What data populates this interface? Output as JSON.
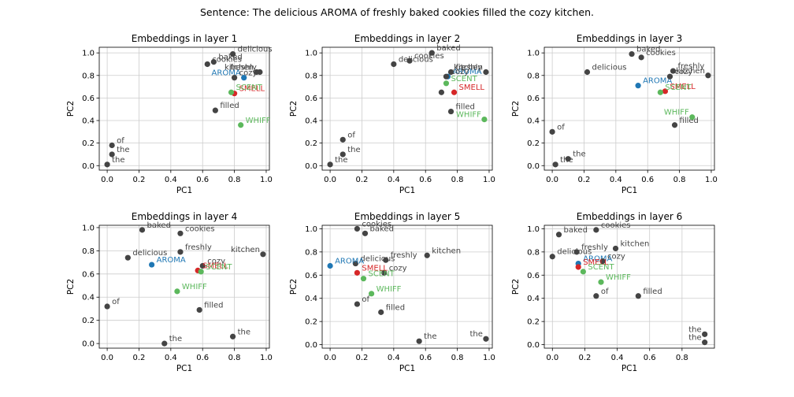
{
  "chart_data": {
    "type": "scatter",
    "suptitle": "Sentence: The delicious AROMA of freshly baked cookies filled the cozy kitchen.",
    "colors": {
      "word": "#444444",
      "AROMA": "#1f77b4",
      "SMELL": "#d62728",
      "SCENT": "#5cb85c",
      "WHIFF": "#5cb85c",
      "grid": "#cccccc"
    },
    "panels": [
      {
        "title": "Embeddings in layer 1",
        "xlabel": "PC1",
        "ylabel": "PC2",
        "xlim": [
          -0.05,
          1.02
        ],
        "ylim": [
          -0.04,
          1.05
        ],
        "xticks": [
          0.0,
          0.2,
          0.4,
          0.6,
          0.8,
          1.0
        ],
        "yticks": [
          0.0,
          0.2,
          0.4,
          0.6,
          0.8,
          1.0
        ],
        "grid": true,
        "points": [
          {
            "label": "the",
            "x": 0.0,
            "y": 0.01
          },
          {
            "label": "delicious",
            "x": 0.79,
            "y": 0.99
          },
          {
            "label": "AROMA",
            "x": 0.86,
            "y": 0.78
          },
          {
            "label": "of",
            "x": 0.03,
            "y": 0.18
          },
          {
            "label": "freshly",
            "x": 0.96,
            "y": 0.83
          },
          {
            "label": "baked",
            "x": 0.67,
            "y": 0.92
          },
          {
            "label": "cookies",
            "x": 0.63,
            "y": 0.9
          },
          {
            "label": "filled",
            "x": 0.68,
            "y": 0.49
          },
          {
            "label": "the",
            "x": 0.03,
            "y": 0.1
          },
          {
            "label": "cozy",
            "x": 0.8,
            "y": 0.78
          },
          {
            "label": "kitchen",
            "x": 0.94,
            "y": 0.83
          },
          {
            "label": "SMELL",
            "x": 0.8,
            "y": 0.64
          },
          {
            "label": "SCENT",
            "x": 0.78,
            "y": 0.65
          },
          {
            "label": "WHIFF",
            "x": 0.84,
            "y": 0.36
          }
        ]
      },
      {
        "title": "Embeddings in layer 2",
        "xlabel": "PC1",
        "ylabel": "PC2",
        "xlim": [
          -0.05,
          1.02
        ],
        "ylim": [
          -0.04,
          1.05
        ],
        "xticks": [
          0.0,
          0.2,
          0.4,
          0.6,
          0.8,
          1.0
        ],
        "yticks": [
          0.0,
          0.2,
          0.4,
          0.6,
          0.8,
          1.0
        ],
        "grid": true,
        "points": [
          {
            "label": "the",
            "x": 0.0,
            "y": 0.01
          },
          {
            "label": "delicious",
            "x": 0.4,
            "y": 0.9
          },
          {
            "label": "AROMA",
            "x": 0.74,
            "y": 0.79
          },
          {
            "label": "of",
            "x": 0.08,
            "y": 0.23
          },
          {
            "label": "freshly",
            "x": 0.76,
            "y": 0.83
          },
          {
            "label": "baked",
            "x": 0.64,
            "y": 1.0
          },
          {
            "label": "cookies",
            "x": 0.5,
            "y": 0.93
          },
          {
            "label": "filled",
            "x": 0.76,
            "y": 0.48
          },
          {
            "label": "the",
            "x": 0.08,
            "y": 0.1
          },
          {
            "label": "cozy",
            "x": 0.73,
            "y": 0.79
          },
          {
            "label": "kitchen",
            "x": 0.98,
            "y": 0.83
          },
          {
            "label": "SMELL",
            "x": 0.78,
            "y": 0.65
          },
          {
            "label": "SCENT",
            "x": 0.73,
            "y": 0.73
          },
          {
            "label": "WHIFF",
            "x": 0.97,
            "y": 0.41
          },
          {
            "label": "",
            "x": 0.7,
            "y": 0.65
          }
        ]
      },
      {
        "title": "Embeddings in layer 3",
        "xlabel": "PC1",
        "ylabel": "PC2",
        "xlim": [
          -0.05,
          1.02
        ],
        "ylim": [
          -0.04,
          1.05
        ],
        "xticks": [
          0.0,
          0.2,
          0.4,
          0.6,
          0.8,
          1.0
        ],
        "yticks": [
          0.0,
          0.2,
          0.4,
          0.6,
          0.8,
          1.0
        ],
        "grid": true,
        "points": [
          {
            "label": "the",
            "x": 0.1,
            "y": 0.06
          },
          {
            "label": "delicious",
            "x": 0.22,
            "y": 0.83
          },
          {
            "label": "AROMA",
            "x": 0.54,
            "y": 0.71
          },
          {
            "label": "of",
            "x": 0.0,
            "y": 0.3
          },
          {
            "label": "freshly",
            "x": 0.76,
            "y": 0.84
          },
          {
            "label": "baked",
            "x": 0.5,
            "y": 0.99
          },
          {
            "label": "cookies",
            "x": 0.56,
            "y": 0.96
          },
          {
            "label": "filled",
            "x": 0.77,
            "y": 0.36
          },
          {
            "label": "the",
            "x": 0.02,
            "y": 0.01
          },
          {
            "label": "cozy",
            "x": 0.74,
            "y": 0.79
          },
          {
            "label": "kitchen",
            "x": 0.98,
            "y": 0.8
          },
          {
            "label": "SMELL",
            "x": 0.71,
            "y": 0.66
          },
          {
            "label": "SCENT",
            "x": 0.68,
            "y": 0.65
          },
          {
            "label": "WHIFF",
            "x": 0.88,
            "y": 0.43
          }
        ]
      },
      {
        "title": "Embeddings in layer 4",
        "xlabel": "PC1",
        "ylabel": "PC2",
        "xlim": [
          -0.05,
          1.02
        ],
        "ylim": [
          -0.04,
          1.02
        ],
        "xticks": [
          0.0,
          0.2,
          0.4,
          0.6,
          0.8,
          1.0
        ],
        "yticks": [
          0.0,
          0.2,
          0.4,
          0.6,
          0.8,
          1.0
        ],
        "grid": true,
        "points": [
          {
            "label": "the",
            "x": 0.36,
            "y": 0.0
          },
          {
            "label": "delicious",
            "x": 0.13,
            "y": 0.74
          },
          {
            "label": "AROMA",
            "x": 0.28,
            "y": 0.68
          },
          {
            "label": "of",
            "x": 0.0,
            "y": 0.32
          },
          {
            "label": "freshly",
            "x": 0.46,
            "y": 0.79
          },
          {
            "label": "baked",
            "x": 0.22,
            "y": 0.98
          },
          {
            "label": "cookies",
            "x": 0.46,
            "y": 0.95
          },
          {
            "label": "filled",
            "x": 0.58,
            "y": 0.29
          },
          {
            "label": "the",
            "x": 0.79,
            "y": 0.06
          },
          {
            "label": "cozy",
            "x": 0.6,
            "y": 0.67
          },
          {
            "label": "kitchen",
            "x": 0.98,
            "y": 0.77
          },
          {
            "label": "SMELL",
            "x": 0.57,
            "y": 0.63
          },
          {
            "label": "SCENT",
            "x": 0.59,
            "y": 0.62
          },
          {
            "label": "WHIFF",
            "x": 0.44,
            "y": 0.45
          }
        ]
      },
      {
        "title": "Embeddings in layer 5",
        "xlabel": "PC1",
        "ylabel": "PC2",
        "xlim": [
          -0.05,
          1.02
        ],
        "ylim": [
          -0.03,
          1.03
        ],
        "xticks": [
          0.0,
          0.2,
          0.4,
          0.6,
          0.8,
          1.0
        ],
        "yticks": [
          0.0,
          0.2,
          0.4,
          0.6,
          0.8,
          1.0
        ],
        "grid": true,
        "points": [
          {
            "label": "the",
            "x": 0.56,
            "y": 0.03
          },
          {
            "label": "delicious",
            "x": 0.16,
            "y": 0.7
          },
          {
            "label": "AROMA",
            "x": 0.0,
            "y": 0.68
          },
          {
            "label": "of",
            "x": 0.17,
            "y": 0.35
          },
          {
            "label": "freshly",
            "x": 0.35,
            "y": 0.73
          },
          {
            "label": "baked",
            "x": 0.22,
            "y": 0.96
          },
          {
            "label": "cookies",
            "x": 0.17,
            "y": 1.0
          },
          {
            "label": "filled",
            "x": 0.32,
            "y": 0.28
          },
          {
            "label": "the",
            "x": 0.98,
            "y": 0.05
          },
          {
            "label": "cozy",
            "x": 0.34,
            "y": 0.62
          },
          {
            "label": "kitchen",
            "x": 0.61,
            "y": 0.77
          },
          {
            "label": "SMELL",
            "x": 0.17,
            "y": 0.62
          },
          {
            "label": "SCENT",
            "x": 0.21,
            "y": 0.57
          },
          {
            "label": "WHIFF",
            "x": 0.26,
            "y": 0.44
          }
        ]
      },
      {
        "title": "Embeddings in layer 6",
        "xlabel": "PC1",
        "ylabel": "PC2",
        "xlim": [
          -0.05,
          1.0
        ],
        "ylim": [
          -0.03,
          1.03
        ],
        "xticks": [
          0.0,
          0.2,
          0.4,
          0.6,
          0.8
        ],
        "yticks": [
          0.0,
          0.2,
          0.4,
          0.6,
          0.8,
          1.0
        ],
        "grid": true,
        "points": [
          {
            "label": "the",
            "x": 0.94,
            "y": 0.02
          },
          {
            "label": "delicious",
            "x": 0.0,
            "y": 0.76
          },
          {
            "label": "AROMA",
            "x": 0.16,
            "y": 0.7
          },
          {
            "label": "of",
            "x": 0.27,
            "y": 0.42
          },
          {
            "label": "freshly",
            "x": 0.15,
            "y": 0.8
          },
          {
            "label": "baked",
            "x": 0.04,
            "y": 0.95
          },
          {
            "label": "cookies",
            "x": 0.27,
            "y": 0.99
          },
          {
            "label": "filled",
            "x": 0.53,
            "y": 0.42
          },
          {
            "label": "the",
            "x": 0.94,
            "y": 0.09
          },
          {
            "label": "cozy",
            "x": 0.31,
            "y": 0.72
          },
          {
            "label": "kitchen",
            "x": 0.39,
            "y": 0.83
          },
          {
            "label": "SMELL",
            "x": 0.16,
            "y": 0.67
          },
          {
            "label": "SCENT",
            "x": 0.19,
            "y": 0.63
          },
          {
            "label": "WHIFF",
            "x": 0.3,
            "y": 0.54
          }
        ]
      }
    ]
  }
}
